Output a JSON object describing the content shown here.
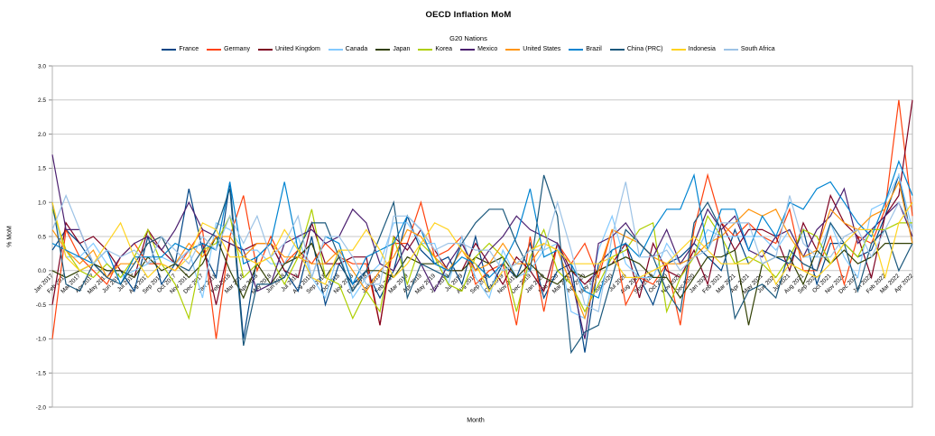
{
  "chart_data": {
    "type": "line",
    "title": "OECD Inflation MoM",
    "subtitle": "G20 Nations",
    "xlabel": "Month",
    "ylabel": "% MoM",
    "ylim": [
      -2.0,
      3.0
    ],
    "ytick_step": 0.5,
    "yticks": [
      "3.0",
      "2.5",
      "2.0",
      "1.5",
      "1.0",
      "0.5",
      "0.0",
      "-0.5",
      "-1.0",
      "-1.5",
      "-2.0"
    ],
    "grid": true,
    "legend_position": "top",
    "x_label_rotation": -45,
    "x_labels_at_zero_line": true,
    "categories": [
      "Jan 2017",
      "Feb 2017",
      "Mar 2017",
      "Apr 2017",
      "May 2017",
      "Jun 2017",
      "Jul 2017",
      "Aug 2017",
      "Sep 2017",
      "Oct 2017",
      "Nov 2017",
      "Dec 2017",
      "Jan 2018",
      "Feb 2018",
      "Mar 2018",
      "Apr 2018",
      "May 2018",
      "Jun 2018",
      "Jul 2018",
      "Aug 2018",
      "Sep 2018",
      "Oct 2018",
      "Nov 2018",
      "Dec 2018",
      "Jan 2019",
      "Feb 2019",
      "Mar 2019",
      "Apr 2019",
      "May 2019",
      "Jun 2019",
      "Jul 2019",
      "Aug 2019",
      "Sep 2019",
      "Oct 2019",
      "Nov 2019",
      "Dec 2019",
      "Jan 2020",
      "Feb 2020",
      "Mar 2020",
      "Apr 2020",
      "May 2020",
      "Jun 2020",
      "Jul 2020",
      "Aug 2020",
      "Sep 2020",
      "Oct 2020",
      "Nov 2020",
      "Dec 2020",
      "Jan 2021",
      "Feb 2021",
      "Mar 2021",
      "Apr 2021",
      "May 2021",
      "Jun 2021",
      "Jul 2021",
      "Aug 2021",
      "Sep 2021",
      "Oct 2021",
      "Nov 2021",
      "Dec 2021",
      "Jan 2022",
      "Feb 2022",
      "Mar 2022",
      "Apr 2022"
    ],
    "series": [
      {
        "name": "France",
        "color": "#004586",
        "values": [
          0.3,
          0.6,
          0.4,
          0.1,
          0.0,
          0.0,
          -0.3,
          0.5,
          -0.2,
          0.1,
          1.2,
          0.3,
          -0.1,
          1.3,
          -1.0,
          0.2,
          0.4,
          0.0,
          -0.3,
          0.5,
          -0.5,
          0.1,
          -0.2,
          0.0,
          -0.4,
          0.0,
          0.8,
          0.3,
          0.1,
          0.2,
          -0.2,
          0.5,
          -0.3,
          0.1,
          -0.1,
          0.4,
          -0.4,
          0.0,
          0.1,
          -1.2,
          0.1,
          0.3,
          0.4,
          -0.1,
          -0.5,
          0.1,
          0.2,
          0.4,
          0.2,
          0.0,
          0.6,
          0.1,
          0.3,
          0.2,
          0.1,
          0.6,
          -0.2,
          0.4,
          0.4,
          0.2,
          0.3,
          0.8,
          1.4,
          0.4
        ]
      },
      {
        "name": "Germany",
        "color": "#FF420E",
        "values": [
          -1.0,
          0.6,
          0.2,
          0.0,
          -0.2,
          0.2,
          0.4,
          0.1,
          0.1,
          0.0,
          0.3,
          0.6,
          -1.0,
          0.5,
          1.1,
          0.0,
          0.5,
          0.1,
          0.3,
          0.1,
          0.4,
          0.2,
          0.1,
          0.1,
          -0.8,
          0.4,
          0.4,
          1.0,
          0.2,
          0.3,
          0.5,
          -0.2,
          0.0,
          0.1,
          -0.8,
          0.5,
          -0.6,
          0.4,
          0.1,
          0.4,
          -0.1,
          0.6,
          -0.5,
          -0.1,
          -0.2,
          0.1,
          -0.8,
          0.6,
          1.4,
          0.7,
          0.5,
          0.7,
          0.5,
          0.4,
          0.9,
          0.0,
          0.0,
          0.5,
          -0.2,
          0.5,
          0.4,
          0.9,
          2.5,
          0.8
        ]
      },
      {
        "name": "United Kingdom",
        "color": "#7E0021",
        "values": [
          -0.5,
          0.7,
          0.4,
          0.5,
          0.3,
          0.0,
          -0.1,
          0.6,
          0.3,
          0.1,
          0.3,
          0.4,
          -0.5,
          0.4,
          0.3,
          0.4,
          0.4,
          0.0,
          -0.1,
          0.7,
          0.1,
          0.1,
          0.2,
          0.2,
          -0.8,
          0.5,
          0.3,
          0.6,
          0.3,
          0.0,
          0.0,
          0.4,
          0.1,
          -0.2,
          0.2,
          0.0,
          -0.3,
          0.4,
          0.0,
          -0.2,
          0.0,
          0.1,
          0.4,
          -0.4,
          0.4,
          0.0,
          -0.1,
          0.3,
          -0.2,
          0.7,
          0.3,
          0.6,
          0.6,
          0.5,
          0.0,
          0.7,
          0.3,
          1.1,
          0.7,
          0.5,
          -0.1,
          0.8,
          1.1,
          2.5
        ]
      },
      {
        "name": "Canada",
        "color": "#83CAFF",
        "values": [
          0.9,
          0.2,
          0.2,
          0.4,
          0.1,
          -0.1,
          0.0,
          0.1,
          0.2,
          0.1,
          0.3,
          -0.4,
          0.7,
          0.6,
          0.3,
          0.3,
          0.1,
          0.1,
          0.5,
          -0.1,
          -0.4,
          0.3,
          -0.4,
          -0.1,
          0.1,
          0.7,
          0.7,
          0.4,
          0.4,
          -0.2,
          0.5,
          -0.1,
          -0.4,
          0.3,
          -0.1,
          0.0,
          0.3,
          0.4,
          -0.6,
          -0.7,
          0.3,
          0.8,
          0.1,
          -0.1,
          -0.1,
          0.4,
          0.1,
          0.2,
          0.6,
          0.5,
          0.5,
          0.5,
          0.5,
          0.3,
          0.6,
          0.2,
          0.2,
          0.7,
          0.2,
          -0.1,
          0.9,
          1.0,
          1.4,
          0.6
        ]
      },
      {
        "name": "Japan",
        "color": "#314004",
        "values": [
          0.0,
          -0.1,
          0.0,
          0.1,
          0.0,
          0.0,
          -0.1,
          0.2,
          0.0,
          0.1,
          -0.1,
          0.1,
          0.5,
          0.0,
          -0.4,
          0.1,
          -0.2,
          0.1,
          0.2,
          0.4,
          -0.1,
          0.2,
          -0.3,
          0.0,
          0.0,
          -0.1,
          0.2,
          0.1,
          0.1,
          0.0,
          0.0,
          0.2,
          0.1,
          0.2,
          -0.1,
          0.1,
          -0.1,
          -0.2,
          0.0,
          -0.1,
          0.0,
          0.1,
          0.2,
          0.1,
          -0.1,
          -0.1,
          -0.4,
          -0.1,
          0.2,
          0.2,
          0.3,
          -0.8,
          0.1,
          0.2,
          0.2,
          -0.2,
          0.3,
          0.1,
          0.3,
          0.1,
          0.2,
          0.4,
          0.4,
          0.4
        ]
      },
      {
        "name": "Korea",
        "color": "#AECF00",
        "values": [
          0.9,
          0.3,
          0.0,
          -0.1,
          0.1,
          -0.1,
          0.2,
          0.6,
          0.1,
          -0.2,
          -0.7,
          0.3,
          0.4,
          0.8,
          -0.1,
          0.1,
          0.2,
          -0.2,
          0.2,
          0.9,
          -0.1,
          -0.2,
          -0.7,
          -0.3,
          -0.6,
          0.5,
          -0.2,
          0.4,
          0.2,
          -0.2,
          -0.3,
          0.2,
          0.4,
          0.2,
          -0.6,
          0.2,
          0.6,
          0.0,
          -0.2,
          -0.6,
          -0.2,
          0.2,
          0.3,
          0.6,
          0.7,
          -0.6,
          -0.1,
          0.2,
          0.8,
          0.5,
          0.1,
          0.2,
          0.1,
          -0.1,
          0.2,
          0.6,
          0.5,
          0.1,
          0.4,
          0.2,
          0.6,
          0.6,
          0.7,
          0.7
        ]
      },
      {
        "name": "Mexico",
        "color": "#4B1F6F",
        "values": [
          1.7,
          0.6,
          0.6,
          0.1,
          -0.1,
          0.2,
          0.4,
          0.5,
          0.3,
          0.6,
          1.0,
          0.6,
          0.5,
          0.4,
          0.3,
          -0.3,
          -0.2,
          0.4,
          0.5,
          0.6,
          0.4,
          0.5,
          0.9,
          0.7,
          0.1,
          0.0,
          0.4,
          0.1,
          -0.3,
          0.1,
          0.4,
          0.0,
          0.3,
          0.5,
          0.8,
          0.6,
          0.5,
          0.4,
          -0.1,
          -1.0,
          0.4,
          0.5,
          0.7,
          0.4,
          0.2,
          0.6,
          0.1,
          0.4,
          0.9,
          0.6,
          0.8,
          0.3,
          0.2,
          0.5,
          0.6,
          0.2,
          0.6,
          0.8,
          1.2,
          0.4,
          0.6,
          0.8,
          1.0,
          0.5
        ]
      },
      {
        "name": "United States",
        "color": "#FF950E",
        "values": [
          0.6,
          0.3,
          0.1,
          0.3,
          -0.1,
          0.1,
          0.1,
          0.4,
          0.5,
          0.1,
          0.4,
          0.2,
          0.5,
          0.5,
          0.2,
          0.4,
          0.4,
          0.2,
          0.2,
          0.1,
          0.1,
          0.3,
          0.0,
          -0.3,
          0.0,
          0.2,
          0.6,
          0.5,
          0.2,
          0.0,
          0.3,
          0.0,
          0.1,
          0.4,
          0.1,
          0.1,
          0.4,
          0.3,
          -0.2,
          -0.7,
          0.0,
          0.6,
          0.5,
          0.4,
          0.2,
          0.1,
          0.1,
          0.2,
          0.4,
          0.5,
          0.7,
          0.9,
          0.8,
          0.9,
          0.5,
          0.2,
          0.3,
          0.9,
          0.7,
          0.6,
          0.8,
          0.9,
          1.3,
          0.4
        ]
      },
      {
        "name": "Brazil",
        "color": "#0084D1",
        "values": [
          0.4,
          0.3,
          0.2,
          0.1,
          0.3,
          -0.2,
          0.2,
          0.2,
          0.2,
          0.4,
          0.3,
          0.4,
          0.3,
          1.3,
          0.1,
          0.2,
          0.4,
          1.3,
          0.3,
          -0.1,
          0.5,
          0.4,
          -0.2,
          0.2,
          0.3,
          0.4,
          0.8,
          0.6,
          0.1,
          0.0,
          0.2,
          0.1,
          -0.1,
          0.1,
          0.5,
          1.2,
          0.2,
          0.3,
          0.1,
          -0.3,
          -0.4,
          0.3,
          0.4,
          0.2,
          0.6,
          0.9,
          0.9,
          1.4,
          0.3,
          0.9,
          0.9,
          0.3,
          0.8,
          0.5,
          1.0,
          0.9,
          1.2,
          1.3,
          1.0,
          0.7,
          0.5,
          1.0,
          1.6,
          1.1
        ]
      },
      {
        "name": "China (PRC)",
        "color": "#1B587C",
        "values": [
          1.0,
          -0.2,
          -0.3,
          0.1,
          -0.1,
          -0.2,
          0.1,
          0.4,
          0.5,
          0.1,
          0.0,
          0.3,
          0.6,
          1.2,
          -1.1,
          -0.2,
          -0.2,
          -0.1,
          0.3,
          0.7,
          0.7,
          0.2,
          -0.3,
          0.0,
          0.5,
          1.0,
          -0.4,
          0.1,
          0.0,
          -0.1,
          0.4,
          0.7,
          0.9,
          0.9,
          0.4,
          0.0,
          1.4,
          0.8,
          -1.2,
          -0.9,
          -0.8,
          -0.1,
          0.6,
          0.4,
          0.2,
          -0.3,
          -0.6,
          0.7,
          1.0,
          0.6,
          -0.7,
          -0.3,
          -0.2,
          -0.4,
          0.3,
          0.1,
          0.0,
          0.7,
          0.4,
          -0.3,
          0.4,
          0.6,
          0.0,
          0.4
        ]
      },
      {
        "name": "Indonesia",
        "color": "#FFD320",
        "values": [
          1.0,
          0.2,
          0.0,
          0.1,
          0.4,
          0.7,
          0.2,
          -0.1,
          0.1,
          0.0,
          0.2,
          0.7,
          0.6,
          0.2,
          0.2,
          0.1,
          0.2,
          0.6,
          0.3,
          -0.1,
          -0.2,
          0.3,
          0.3,
          0.6,
          0.3,
          -0.1,
          0.1,
          0.4,
          0.7,
          0.6,
          0.3,
          0.1,
          -0.3,
          0.0,
          0.1,
          0.3,
          0.4,
          0.3,
          0.1,
          0.1,
          0.1,
          0.2,
          -0.1,
          -0.1,
          0.0,
          0.1,
          0.3,
          0.5,
          0.3,
          0.1,
          0.1,
          0.1,
          0.3,
          -0.2,
          0.1,
          0.0,
          -0.1,
          0.1,
          0.4,
          0.6,
          0.6,
          -0.1,
          0.7,
          1.0
        ]
      },
      {
        "name": "South Africa",
        "color": "#9DC3E6",
        "values": [
          0.6,
          1.1,
          0.6,
          0.1,
          0.3,
          0.2,
          0.3,
          0.1,
          0.5,
          0.3,
          0.1,
          0.5,
          0.3,
          0.8,
          0.4,
          0.8,
          0.2,
          0.4,
          0.8,
          -0.1,
          0.5,
          0.5,
          0.2,
          -0.2,
          -0.2,
          0.8,
          0.8,
          0.6,
          0.3,
          0.4,
          0.4,
          0.3,
          0.3,
          0.0,
          0.1,
          0.3,
          0.3,
          1.0,
          0.3,
          -0.5,
          -0.6,
          0.5,
          1.3,
          0.2,
          0.2,
          0.3,
          0.0,
          0.2,
          0.3,
          0.7,
          0.7,
          0.7,
          0.1,
          0.2,
          1.1,
          0.4,
          0.2,
          0.2,
          0.5,
          0.6,
          0.2,
          0.6,
          1.0,
          0.6
        ]
      }
    ]
  }
}
